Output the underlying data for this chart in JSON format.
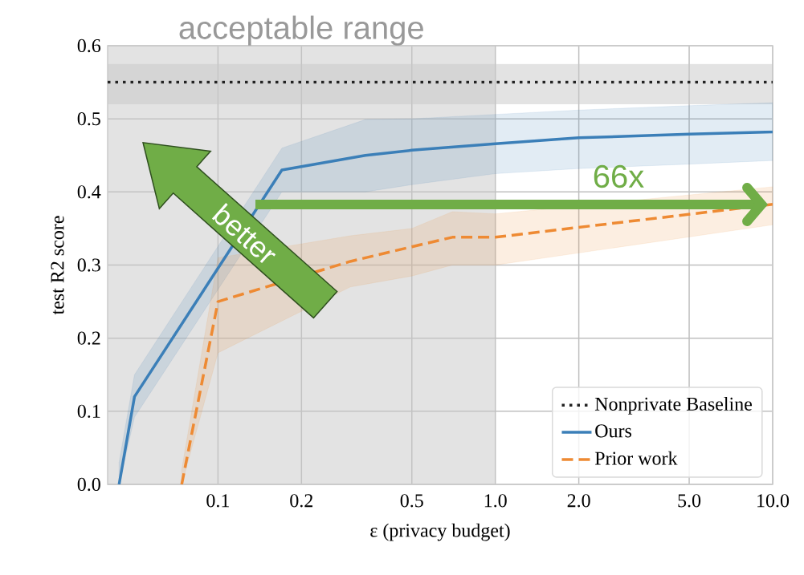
{
  "chart_data": {
    "type": "line",
    "xlabel": "ε (privacy budget)",
    "ylabel": "test R2 score",
    "log": "x",
    "grid": true,
    "legend": "bottom right",
    "xlim": [
      0.04,
      10
    ],
    "ylim": [
      0,
      0.6
    ],
    "xticks": [
      0.1,
      0.2,
      0.5,
      {
        "value": 1,
        "label": "1.0"
      },
      {
        "value": 2,
        "label": "2.0"
      },
      {
        "value": 5,
        "label": "5.0"
      },
      {
        "value": 10,
        "label": "10.0"
      }
    ],
    "yticks": [
      {
        "value": 0,
        "label": "0.0"
      },
      {
        "value": 0.1,
        "label": "0.1"
      },
      {
        "value": 0.2,
        "label": "0.2"
      },
      {
        "value": 0.3,
        "label": "0.3"
      },
      {
        "value": 0.4,
        "label": "0.4"
      },
      {
        "value": 0.5,
        "label": "0.5"
      },
      {
        "value": 0.6,
        "label": "0.6"
      }
    ],
    "series": [
      {
        "name": "Ours",
        "color": "#3b7fb8",
        "line_style": "solid",
        "x": [
          0.044,
          0.05,
          0.17,
          0.34,
          0.5,
          1,
          2,
          5,
          10
        ],
        "values": [
          0,
          0.12,
          0.43,
          0.45,
          0.457,
          0.466,
          0.474,
          0.479,
          0.482
        ],
        "lower": [
          0,
          0.092,
          0.4,
          0.4,
          0.41,
          0.425,
          0.432,
          0.438,
          0.443
        ],
        "upper": [
          0.03,
          0.15,
          0.46,
          0.499,
          0.5,
          0.506,
          0.512,
          0.518,
          0.522
        ]
      },
      {
        "name": "Prior work",
        "color": "#ee8a33",
        "line_style": "dashed",
        "x": [
          0.074,
          0.1,
          0.3,
          0.5,
          0.7,
          1,
          10
        ],
        "values": [
          0,
          0.25,
          0.305,
          0.325,
          0.338,
          0.338,
          0.383
        ],
        "lower": [
          0,
          0.18,
          0.27,
          0.285,
          0.3,
          0.3,
          0.355
        ],
        "upper": [
          0.02,
          0.31,
          0.34,
          0.35,
          0.373,
          0.37,
          0.407
        ]
      }
    ],
    "ref_lines": [
      {
        "axis": "y",
        "value": 0.55,
        "label": "Nonprivate Baseline",
        "color": "#222222",
        "line_style": "dotted"
      }
    ],
    "bands": [
      {
        "axis": "x",
        "from": 0.04,
        "to": 1,
        "label": "acceptable range",
        "color": "#c8c8c8"
      },
      {
        "axis": "y",
        "from": 0.52,
        "to": 0.575,
        "color": "#c8c8c8"
      }
    ],
    "annotations": [
      "better",
      "66x"
    ]
  }
}
